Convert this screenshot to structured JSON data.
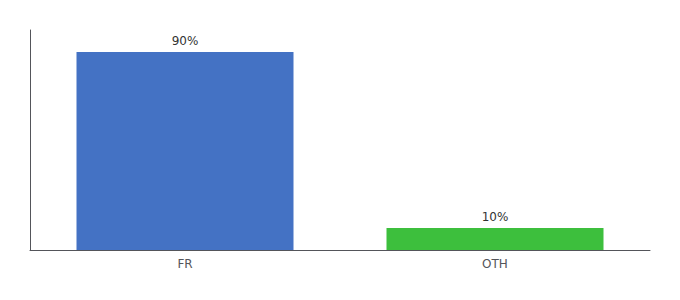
{
  "chart_data": {
    "type": "bar",
    "categories": [
      "FR",
      "OTH"
    ],
    "values": [
      90,
      10
    ],
    "value_labels": [
      "90%",
      "10%"
    ],
    "colors": [
      "#4472c4",
      "#3dbf3d"
    ],
    "ylim": [
      0,
      100
    ],
    "data_labels": true,
    "tick_labels": "x",
    "grid": false
  }
}
